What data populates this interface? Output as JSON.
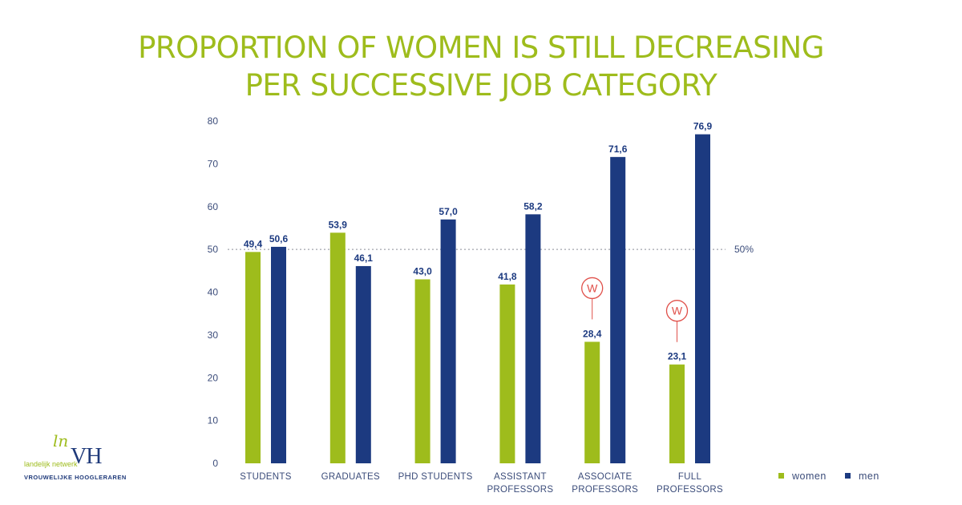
{
  "colors": {
    "title": "#9ebc1c",
    "women": "#9ebc1c",
    "men": "#1c3a80",
    "axis_text": "#3b4c7a",
    "marker": "#e0504a"
  },
  "logo": {
    "mark_ln": "ln",
    "mark_vh": "VH",
    "line1": "landelijk netwerk",
    "line2": "VROUWELIJKE HOOGLERAREN"
  },
  "chart_data": {
    "type": "bar",
    "title_lines": [
      "PROPORTION OF WOMEN IS STILL DECREASING",
      "PER SUCCESSIVE JOB CATEGORY"
    ],
    "categories": [
      [
        "STUDENTS"
      ],
      [
        "GRADUATES"
      ],
      [
        "PHD STUDENTS"
      ],
      [
        "ASSISTANT",
        "PROFESSORS"
      ],
      [
        "ASSOCIATE",
        "PROFESSORS"
      ],
      [
        "FULL",
        "PROFESSORS"
      ]
    ],
    "series": [
      {
        "name": "women",
        "values": [
          49.4,
          53.9,
          43.0,
          41.8,
          28.4,
          23.1
        ],
        "labels": [
          "49,4",
          "53,9",
          "43,0",
          "41,8",
          "28,4",
          "23,1"
        ]
      },
      {
        "name": "men",
        "values": [
          50.6,
          46.1,
          57.0,
          58.2,
          71.6,
          76.9
        ],
        "labels": [
          "50,6",
          "46,1",
          "57,0",
          "58,2",
          "71,6",
          "76,9"
        ]
      }
    ],
    "ylim": [
      0,
      80
    ],
    "yticks": [
      0,
      10,
      20,
      30,
      40,
      50,
      60,
      70,
      80
    ],
    "reference_line": {
      "value": 50,
      "label": "50%"
    },
    "markers": [
      {
        "category_index": 4,
        "series": "women",
        "symbol": "W"
      },
      {
        "category_index": 5,
        "series": "women",
        "symbol": "W"
      }
    ],
    "legend": {
      "position": "bottom-right",
      "entries": [
        "women",
        "men"
      ]
    }
  }
}
